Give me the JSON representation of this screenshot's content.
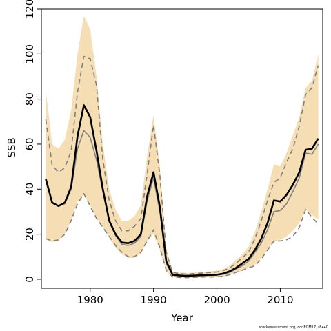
{
  "chart_data": {
    "type": "line",
    "xlabel": "Year",
    "ylabel": "SSB",
    "xlim": [
      1972.3,
      2016.7
    ],
    "ylim": [
      -4,
      120
    ],
    "x_ticks": [
      1980,
      1990,
      2000,
      2010
    ],
    "y_ticks": [
      0,
      20,
      40,
      60,
      80,
      100,
      120
    ],
    "grid": false,
    "legend": "none",
    "x": [
      1973,
      1974,
      1975,
      1976,
      1977,
      1978,
      1979,
      1980,
      1981,
      1982,
      1983,
      1984,
      1985,
      1986,
      1987,
      1988,
      1989,
      1990,
      1991,
      1992,
      1993,
      1994,
      1995,
      1996,
      1997,
      1998,
      1999,
      2000,
      2001,
      2002,
      2003,
      2004,
      2005,
      2006,
      2007,
      2008,
      2009,
      2010,
      2011,
      2012,
      2013,
      2014,
      2015,
      2016
    ],
    "series": [
      {
        "role": "estimate",
        "color": "#000000",
        "values": [
          44.5,
          34.0,
          32.5,
          34.0,
          41.0,
          63.5,
          77.3,
          72.0,
          57.0,
          40.0,
          26.0,
          20.0,
          16.3,
          16.0,
          17.0,
          20.0,
          37.0,
          47.5,
          32.0,
          8.0,
          2.0,
          1.7,
          1.5,
          1.6,
          1.7,
          1.8,
          1.9,
          2.0,
          2.5,
          3.5,
          5.0,
          7.0,
          9.0,
          13.0,
          18.0,
          25.0,
          35.0,
          34.5,
          37.5,
          42.0,
          47.5,
          57.5,
          58.0,
          62.5
        ]
      },
      {
        "role": "upper-bound",
        "color": "#808080",
        "values": [
          71.0,
          50.5,
          47.5,
          49.5,
          57.0,
          83.0,
          99.0,
          98.0,
          86.0,
          53.0,
          35.0,
          26.0,
          21.5,
          21.5,
          23.5,
          27.0,
          47.0,
          68.5,
          46.0,
          12.0,
          3.0,
          2.5,
          2.3,
          2.4,
          2.6,
          2.8,
          3.0,
          3.2,
          3.8,
          5.0,
          7.0,
          9.5,
          12.0,
          18.0,
          26.0,
          35.0,
          43.0,
          45.0,
          52.0,
          58.0,
          68.0,
          82.0,
          85.0,
          95.0
        ]
      },
      {
        "role": "lower-bound",
        "color": "#808080",
        "values": [
          18.0,
          17.0,
          17.5,
          20.0,
          26.0,
          33.5,
          38.0,
          32.5,
          27.0,
          23.0,
          19.0,
          15.0,
          12.0,
          10.0,
          10.0,
          12.0,
          17.0,
          22.0,
          14.0,
          4.0,
          1.0,
          0.8,
          0.7,
          0.8,
          0.9,
          1.0,
          1.0,
          1.1,
          1.3,
          2.0,
          3.0,
          4.0,
          5.0,
          6.0,
          9.0,
          13.0,
          17.0,
          17.0,
          17.5,
          19.0,
          23.0,
          31.0,
          27.5,
          24.5
        ]
      },
      {
        "role": "alternative",
        "color": "#808080",
        "values": [
          44.0,
          34.0,
          32.5,
          33.5,
          40.0,
          58.0,
          66.0,
          63.0,
          53.0,
          39.0,
          25.5,
          19.5,
          15.5,
          15.0,
          16.0,
          19.0,
          35.0,
          45.0,
          30.0,
          7.0,
          1.8,
          1.5,
          1.4,
          1.5,
          1.6,
          1.7,
          1.8,
          1.9,
          2.2,
          3.0,
          4.5,
          6.0,
          8.0,
          12.0,
          16.0,
          22.0,
          30.0,
          30.5,
          33.5,
          39.0,
          45.0,
          56.0,
          55.5,
          60.0
        ]
      }
    ],
    "band": {
      "color": "#f5deb3",
      "upper": [
        84.0,
        60.0,
        58.0,
        62.0,
        75.0,
        100.0,
        117.0,
        111.0,
        90.0,
        60.0,
        40.0,
        31.0,
        26.0,
        26.0,
        28.0,
        33.0,
        55.0,
        73.0,
        50.0,
        14.0,
        3.5,
        3.0,
        2.8,
        2.9,
        3.1,
        3.3,
        3.5,
        3.8,
        4.5,
        6.0,
        8.5,
        11.0,
        14.5,
        21.0,
        30.0,
        40.0,
        51.0,
        50.0,
        56.0,
        64.0,
        72.0,
        85.0,
        88.0,
        100.0
      ],
      "lower": [
        18.0,
        16.5,
        17.0,
        20.0,
        26.0,
        34.5,
        37.5,
        33.0,
        27.0,
        23.0,
        18.5,
        14.0,
        11.0,
        9.5,
        9.5,
        11.5,
        17.0,
        20.0,
        13.0,
        3.5,
        0.9,
        0.7,
        0.6,
        0.7,
        0.8,
        0.9,
        0.9,
        1.0,
        1.2,
        1.9,
        2.8,
        3.8,
        4.8,
        6.5,
        9.5,
        13.0,
        16.5,
        17.5,
        19.0,
        21.5,
        25.0,
        31.0,
        28.5,
        26.5
      ]
    }
  },
  "footer": "stockassessment.org, codEGM17, r8440"
}
